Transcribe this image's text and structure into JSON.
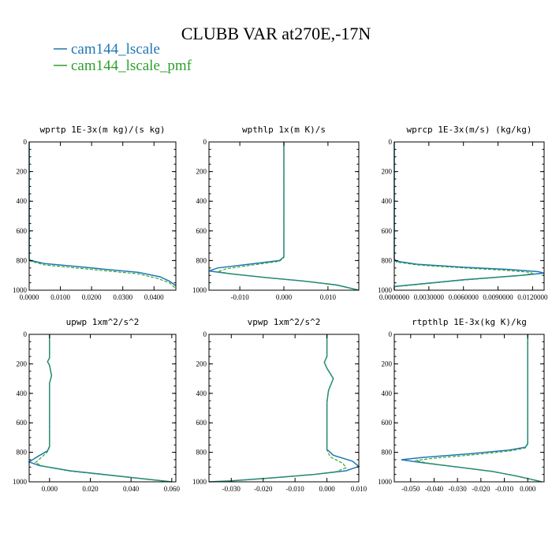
{
  "figure": {
    "title": "CLUBB VAR at270E,-17N"
  },
  "legend": [
    {
      "label": "cam144_lscale",
      "color": "#1f77b4"
    },
    {
      "label": "cam144_lscale_pmf",
      "color": "#2ca02c"
    }
  ],
  "chart_data": [
    {
      "type": "line",
      "title": "wprtp  1E-3x(m kg)/(s kg)",
      "xlim": [
        0.0,
        0.047
      ],
      "ylim": [
        1000,
        0
      ],
      "x_ticks": [
        0.0,
        0.01,
        0.02,
        0.03,
        0.04
      ],
      "x_tick_labels": [
        "0.0000",
        "0.0100",
        "0.0200",
        "0.0300",
        "0.0400"
      ],
      "y_ticks": [
        0,
        200,
        400,
        600,
        800,
        1000
      ],
      "y_tick_labels": [
        "0",
        "200",
        "400",
        "600",
        "800",
        "1000"
      ],
      "series": [
        {
          "name": "cam144_lscale",
          "color": "#1f77b4",
          "dash": "none",
          "x": [
            0.0,
            0.0,
            0.0005,
            0.005,
            0.015,
            0.025,
            0.035,
            0.042,
            0.045,
            0.047
          ],
          "y": [
            0,
            790,
            800,
            820,
            840,
            860,
            880,
            910,
            940,
            970
          ]
        },
        {
          "name": "cam144_lscale_pmf",
          "color": "#2ca02c",
          "dash": "4,2",
          "x": [
            0.0,
            0.0,
            0.0005,
            0.005,
            0.015,
            0.025,
            0.035,
            0.041,
            0.045,
            0.047
          ],
          "y": [
            0,
            795,
            805,
            830,
            850,
            870,
            890,
            920,
            950,
            990
          ]
        }
      ]
    },
    {
      "type": "line",
      "title": "wpthlp  1x(m K)/s",
      "xlim": [
        -0.017,
        0.017
      ],
      "ylim": [
        1000,
        0
      ],
      "x_ticks": [
        -0.01,
        0.0,
        0.01
      ],
      "x_tick_labels": [
        "-0.010",
        "0.000",
        "0.010"
      ],
      "y_ticks": [
        0,
        200,
        400,
        600,
        800,
        1000
      ],
      "y_tick_labels": [
        "0",
        "200",
        "400",
        "600",
        "800",
        "1000"
      ],
      "series": [
        {
          "name": "cam144_lscale",
          "color": "#1f77b4",
          "dash": "none",
          "x": [
            0.0,
            0.0,
            -0.001,
            -0.008,
            -0.015,
            -0.017,
            -0.012,
            -0.004,
            0.005,
            0.012,
            0.017
          ],
          "y": [
            0,
            775,
            800,
            825,
            850,
            870,
            890,
            915,
            940,
            965,
            1000
          ]
        },
        {
          "name": "cam144_lscale_pmf",
          "color": "#2ca02c",
          "dash": "4,2",
          "x": [
            0.0,
            0.0,
            -0.001,
            -0.007,
            -0.013,
            -0.015,
            -0.011,
            -0.003,
            0.006,
            0.012,
            0.017
          ],
          "y": [
            0,
            780,
            805,
            830,
            855,
            875,
            893,
            918,
            943,
            967,
            1000
          ]
        }
      ]
    },
    {
      "type": "line",
      "title": "wprcp  1E-3x(m/s) (kg/kg)",
      "xlim": [
        0.0,
        0.013
      ],
      "ylim": [
        1000,
        0
      ],
      "x_ticks": [
        0.0,
        0.003,
        0.006,
        0.009,
        0.012
      ],
      "x_tick_labels": [
        "0.0000000",
        "0.0030000",
        "0.0060000",
        "0.0090000",
        "0.0120000"
      ],
      "y_ticks": [
        0,
        200,
        400,
        600,
        800,
        1000
      ],
      "y_tick_labels": [
        "0",
        "200",
        "400",
        "600",
        "800",
        "1000"
      ],
      "series": [
        {
          "name": "cam144_lscale",
          "color": "#1f77b4",
          "dash": "none",
          "x": [
            0.0,
            0.0,
            0.0002,
            0.002,
            0.006,
            0.01,
            0.0125,
            0.013,
            0.011,
            0.006,
            0.002,
            0.0,
            0.0
          ],
          "y": [
            0,
            790,
            805,
            825,
            845,
            860,
            875,
            885,
            900,
            930,
            960,
            975,
            1000
          ]
        },
        {
          "name": "cam144_lscale_pmf",
          "color": "#2ca02c",
          "dash": "4,2",
          "x": [
            0.0,
            0.0,
            0.0002,
            0.002,
            0.006,
            0.0095,
            0.0118,
            0.012,
            0.0105,
            0.006,
            0.002,
            0.0,
            0.0
          ],
          "y": [
            0,
            795,
            810,
            830,
            850,
            865,
            880,
            888,
            905,
            932,
            962,
            977,
            1000
          ]
        }
      ]
    },
    {
      "type": "line",
      "title": "upwp  1xm^2/s^2",
      "xlim": [
        -0.01,
        0.062
      ],
      "ylim": [
        1000,
        0
      ],
      "x_ticks": [
        0.0,
        0.02,
        0.04,
        0.06
      ],
      "x_tick_labels": [
        "0.000",
        "0.020",
        "0.040",
        "0.060"
      ],
      "y_ticks": [
        0,
        200,
        400,
        600,
        800,
        1000
      ],
      "y_tick_labels": [
        "0",
        "200",
        "400",
        "600",
        "800",
        "1000"
      ],
      "series": [
        {
          "name": "cam144_lscale",
          "color": "#1f77b4",
          "dash": "none",
          "x": [
            0.0,
            0.0,
            -0.001,
            0.0,
            0.001,
            0.0,
            0.0,
            -0.001,
            -0.006,
            -0.01,
            -0.005,
            0.01,
            0.03,
            0.05,
            0.06
          ],
          "y": [
            0,
            160,
            185,
            210,
            280,
            330,
            760,
            790,
            830,
            865,
            890,
            925,
            955,
            985,
            1000
          ]
        },
        {
          "name": "cam144_lscale_pmf",
          "color": "#2ca02c",
          "dash": "4,2",
          "x": [
            0.0,
            0.0,
            -0.001,
            0.0,
            0.001,
            0.0,
            0.0,
            -0.001,
            -0.004,
            -0.007,
            -0.003,
            0.01,
            0.03,
            0.05,
            0.06
          ],
          "y": [
            0,
            160,
            185,
            210,
            280,
            330,
            765,
            795,
            835,
            870,
            895,
            928,
            957,
            986,
            1000
          ]
        }
      ]
    },
    {
      "type": "line",
      "title": "vpwp  1xm^2/s^2",
      "xlim": [
        -0.037,
        0.01
      ],
      "ylim": [
        1000,
        0
      ],
      "x_ticks": [
        -0.03,
        -0.02,
        -0.01,
        0.0,
        0.01
      ],
      "x_tick_labels": [
        "-0.030",
        "-0.020",
        "-0.010",
        "0.000",
        "0.010"
      ],
      "y_ticks": [
        0,
        200,
        400,
        600,
        800,
        1000
      ],
      "y_tick_labels": [
        "0",
        "200",
        "400",
        "600",
        "800",
        "1000"
      ],
      "series": [
        {
          "name": "cam144_lscale",
          "color": "#1f77b4",
          "dash": "none",
          "x": [
            0.0,
            0.0,
            -0.0008,
            0.0,
            0.002,
            0.0005,
            0.0,
            0.0,
            0.002,
            0.008,
            0.01,
            0.006,
            -0.004,
            -0.018,
            -0.03,
            -0.037
          ],
          "y": [
            0,
            150,
            190,
            230,
            300,
            380,
            460,
            780,
            820,
            860,
            895,
            925,
            950,
            975,
            993,
            1000
          ]
        },
        {
          "name": "cam144_lscale_pmf",
          "color": "#2ca02c",
          "dash": "4,2",
          "x": [
            0.0,
            0.0,
            -0.0008,
            0.0,
            0.002,
            0.0005,
            0.0,
            0.0,
            0.001,
            0.005,
            0.006,
            0.003,
            -0.005,
            -0.018,
            -0.03,
            -0.037
          ],
          "y": [
            0,
            150,
            190,
            230,
            300,
            380,
            460,
            785,
            830,
            875,
            905,
            930,
            953,
            976,
            994,
            1000
          ]
        }
      ]
    },
    {
      "type": "line",
      "title": "rtpthlp  1E-3x(kg K)/kg",
      "xlim": [
        -0.057,
        0.007
      ],
      "ylim": [
        1000,
        0
      ],
      "x_ticks": [
        -0.05,
        -0.04,
        -0.03,
        -0.02,
        -0.01,
        0.0
      ],
      "x_tick_labels": [
        "-0.050",
        "-0.040",
        "-0.030",
        "-0.020",
        "-0.010",
        "0.000"
      ],
      "y_ticks": [
        0,
        200,
        400,
        600,
        800,
        1000
      ],
      "y_tick_labels": [
        "0",
        "200",
        "400",
        "600",
        "800",
        "1000"
      ],
      "series": [
        {
          "name": "cam144_lscale",
          "color": "#1f77b4",
          "dash": "none",
          "x": [
            0.0,
            0.0,
            -0.001,
            -0.008,
            -0.025,
            -0.045,
            -0.054,
            -0.045,
            -0.03,
            -0.015,
            -0.005,
            0.002,
            0.006
          ],
          "y": [
            0,
            740,
            765,
            785,
            810,
            835,
            850,
            870,
            900,
            930,
            960,
            985,
            1000
          ]
        },
        {
          "name": "cam144_lscale_pmf",
          "color": "#2ca02c",
          "dash": "4,2",
          "x": [
            0.0,
            0.0,
            -0.001,
            -0.007,
            -0.022,
            -0.04,
            -0.048,
            -0.043,
            -0.03,
            -0.015,
            -0.005,
            0.002,
            0.006
          ],
          "y": [
            0,
            745,
            770,
            790,
            815,
            840,
            855,
            872,
            900,
            930,
            960,
            985,
            1000
          ]
        }
      ]
    }
  ]
}
